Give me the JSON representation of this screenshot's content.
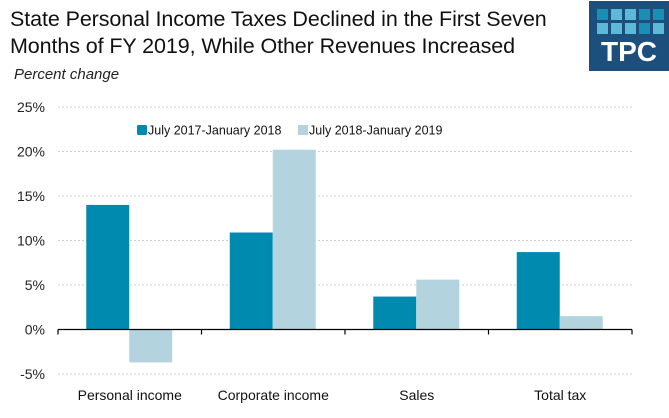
{
  "header": {
    "title": "State Personal Income Taxes Declined in the First Seven Months of FY 2019, While Other Revenues Increased",
    "subtitle": "Percent change"
  },
  "logo": {
    "text": "TPC",
    "background": "#1d4f7c",
    "squares": [
      "#1a8fb6",
      "#5cb9d8",
      "#5cb9d8",
      "#1a8fb6",
      "#1a8fb6",
      "#5cb9d8",
      "#5cb9d8",
      "#5cb9d8",
      "#1a8fb6",
      "#5cb9d8"
    ]
  },
  "chart_data": {
    "type": "bar",
    "title": "State Personal Income Taxes Declined in the First Seven Months of FY 2019, While Other Revenues Increased",
    "ylabel": "Percent change",
    "xlabel": "",
    "categories": [
      "Personal income",
      "Corporate income",
      "Sales",
      "Total tax"
    ],
    "series": [
      {
        "name": "July 2017-January 2018",
        "color": "#008ab0",
        "values": [
          14.0,
          10.9,
          3.7,
          8.7
        ]
      },
      {
        "name": "July 2018-January 2019",
        "color": "#b3d3de",
        "values": [
          -3.7,
          20.2,
          5.6,
          1.5
        ]
      }
    ],
    "ylim": [
      -5,
      25
    ],
    "yticks": [
      -5,
      0,
      5,
      10,
      15,
      20,
      25
    ],
    "ytick_labels": [
      "-5%",
      "0%",
      "5%",
      "10%",
      "15%",
      "20%",
      "25%"
    ],
    "grid": true,
    "legend": "top-center"
  }
}
